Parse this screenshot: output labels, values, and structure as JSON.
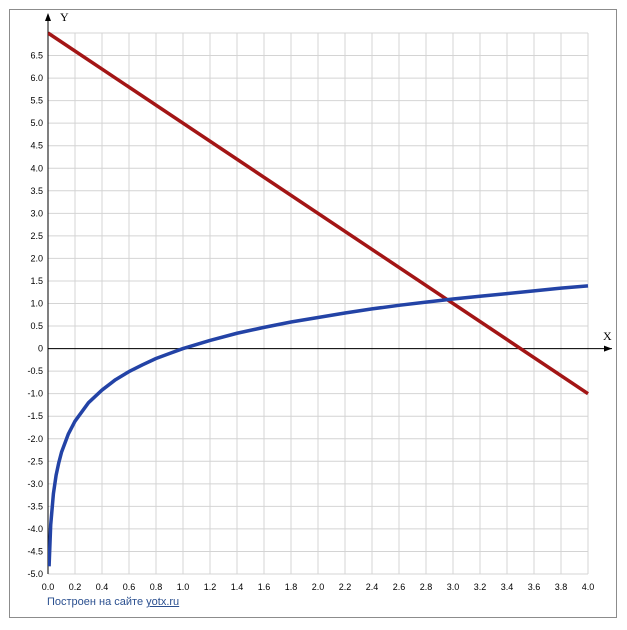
{
  "chart_data": {
    "type": "line",
    "xlabel": "X",
    "ylabel": "Y",
    "xlim": [
      0,
      4
    ],
    "ylim": [
      -5,
      7
    ],
    "x_ticks": [
      "0.0",
      "0.2",
      "0.4",
      "0.6",
      "0.8",
      "1.0",
      "1.2",
      "1.4",
      "1.6",
      "1.8",
      "2.0",
      "2.2",
      "2.4",
      "2.6",
      "2.8",
      "3.0",
      "3.2",
      "3.4",
      "3.6",
      "3.8",
      "4.0"
    ],
    "y_ticks": [
      "6.5",
      "6.0",
      "5.5",
      "5.0",
      "4.5",
      "4.0",
      "3.5",
      "3.0",
      "2.5",
      "2.0",
      "1.5",
      "1.0",
      "0.5",
      "0",
      "-0.5",
      "-1.0",
      "-1.5",
      "-2.0",
      "-2.5",
      "-3.0",
      "-3.5",
      "-4.0",
      "-4.5",
      "-5.0"
    ],
    "grid": true,
    "series": [
      {
        "color": "#a31515",
        "x": [
          0.0,
          4.0
        ],
        "y": [
          7.0,
          -1.0
        ]
      },
      {
        "color": "#2343a6",
        "x": [
          0.008,
          0.02,
          0.04,
          0.06,
          0.08,
          0.1,
          0.15,
          0.2,
          0.3,
          0.4,
          0.5,
          0.6,
          0.7,
          0.8,
          0.9,
          1.0,
          1.2,
          1.4,
          1.6,
          1.8,
          2.0,
          2.2,
          2.4,
          2.6,
          2.8,
          3.0,
          3.2,
          3.4,
          3.6,
          3.8,
          4.0
        ],
        "y": [
          -4.83,
          -3.91,
          -3.22,
          -2.81,
          -2.53,
          -2.3,
          -1.9,
          -1.61,
          -1.2,
          -0.92,
          -0.69,
          -0.51,
          -0.36,
          -0.22,
          -0.11,
          0.0,
          0.18,
          0.34,
          0.47,
          0.59,
          0.69,
          0.79,
          0.88,
          0.96,
          1.03,
          1.1,
          1.16,
          1.22,
          1.28,
          1.34,
          1.39
        ]
      }
    ]
  },
  "footer": {
    "text": "Построен на сайте",
    "link": "yotx.ru"
  }
}
